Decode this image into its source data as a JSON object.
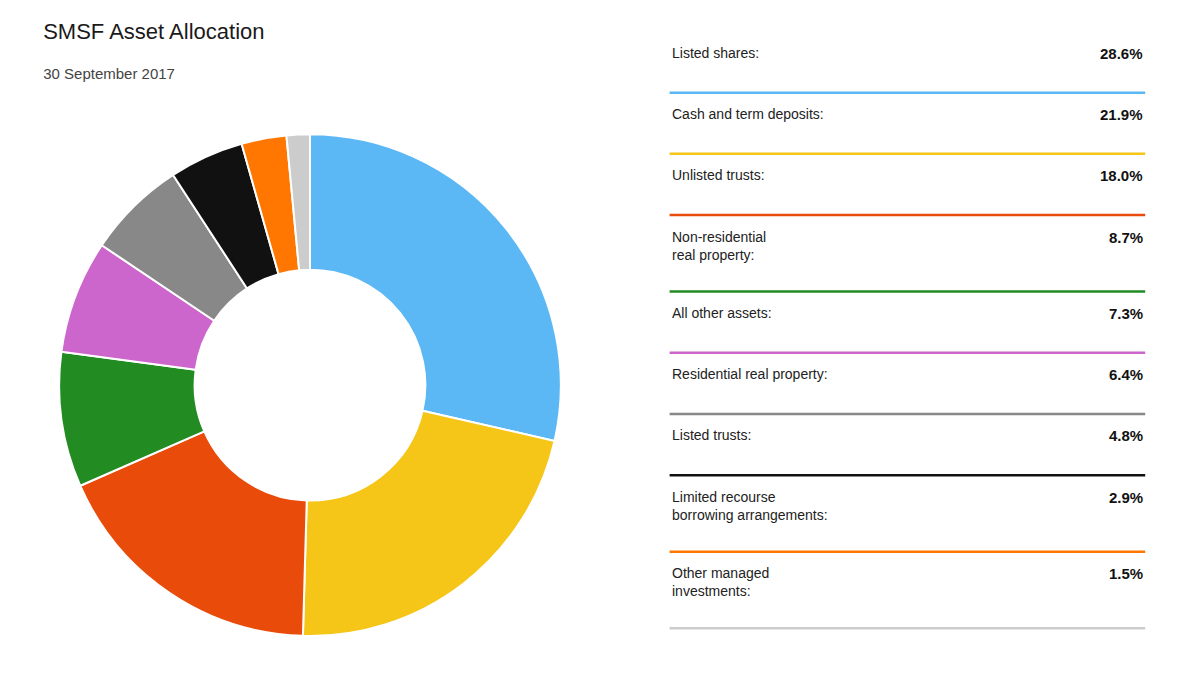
{
  "chart_data": {
    "type": "donut",
    "title": "SMSF Asset Allocation",
    "subtitle": "30 September 2017",
    "categories": [
      "Listed shares:",
      "Cash and term deposits:",
      "Unlisted trusts:",
      "Non-residential\nreal property:",
      "All other assets:",
      "Residential real property:",
      "Listed trusts:",
      "Limited recourse\nborrowing arrangements:",
      "Other managed\ninvestments:"
    ],
    "values": [
      28.6,
      21.9,
      18.0,
      8.7,
      7.3,
      6.4,
      4.8,
      2.9,
      1.5
    ],
    "value_labels": [
      "28.6%",
      "21.9%",
      "18.0%",
      "8.7%",
      "7.3%",
      "6.4%",
      "4.8%",
      "2.9%",
      "1.5%"
    ],
    "colors": [
      "#5BB8F5",
      "#F5C518",
      "#E84B0A",
      "#228B22",
      "#CC66CC",
      "#888888",
      "#111111",
      "#FF7700",
      "#CCCCCC"
    ],
    "legend": "right"
  }
}
